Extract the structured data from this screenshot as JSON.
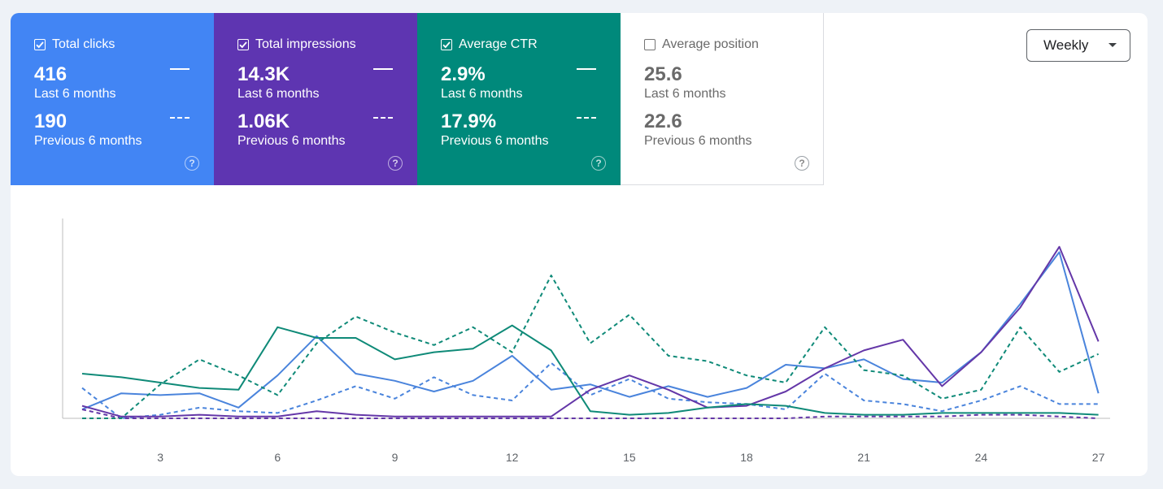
{
  "metrics": [
    {
      "label": "Total clicks",
      "checked": true,
      "value": "416",
      "period": "Last 6 months",
      "prev_value": "190",
      "prev_period": "Previous 6 months",
      "color": "#4285f4",
      "help": "?"
    },
    {
      "label": "Total impressions",
      "checked": true,
      "value": "14.3K",
      "period": "Last 6 months",
      "prev_value": "1.06K",
      "prev_period": "Previous 6 months",
      "color": "#5e35b1",
      "help": "?"
    },
    {
      "label": "Average CTR",
      "checked": true,
      "value": "2.9%",
      "period": "Last 6 months",
      "prev_value": "17.9%",
      "prev_period": "Previous 6 months",
      "color": "#00897b",
      "help": "?"
    },
    {
      "label": "Average position",
      "checked": false,
      "value": "25.6",
      "period": "Last 6 months",
      "prev_value": "22.6",
      "prev_period": "Previous 6 months",
      "color": "#ffffff",
      "help": "?"
    }
  ],
  "granularity": {
    "selected": "Weekly"
  },
  "chart_data": {
    "type": "line",
    "x": [
      1,
      2,
      3,
      4,
      5,
      6,
      7,
      8,
      9,
      10,
      11,
      12,
      13,
      14,
      15,
      16,
      17,
      18,
      19,
      20,
      21,
      22,
      23,
      24,
      25,
      26,
      27
    ],
    "xticks": [
      3,
      6,
      9,
      12,
      15,
      18,
      21,
      24,
      27
    ],
    "xlim": [
      0.5,
      27.3
    ],
    "ylim": [
      0,
      100
    ],
    "grid": false,
    "series": [
      {
        "metric": "clicks",
        "period": "current",
        "style": "solid",
        "color": "#4a84dc",
        "values": [
          5,
          14,
          13,
          14,
          6,
          24,
          46,
          25,
          21,
          15,
          21,
          35,
          16,
          19,
          12,
          18,
          12,
          17,
          30,
          28,
          33,
          22,
          20,
          37,
          64,
          93,
          14
        ]
      },
      {
        "metric": "clicks",
        "period": "previous",
        "style": "dashed",
        "color": "#4a84dc",
        "values": [
          17,
          0,
          2,
          6,
          4,
          3,
          10,
          18,
          11,
          23,
          13,
          10,
          31,
          13,
          22,
          11,
          9,
          8,
          5,
          25,
          10,
          8,
          4,
          10,
          18,
          8,
          8
        ]
      },
      {
        "metric": "impressions",
        "period": "current",
        "style": "solid",
        "color": "#6437a8",
        "values": [
          7,
          1,
          1,
          2,
          1,
          1,
          4,
          2,
          1,
          1,
          1,
          1,
          1,
          16,
          24,
          16,
          6,
          7,
          15,
          28,
          38,
          44,
          18,
          37,
          62,
          96,
          43
        ]
      },
      {
        "metric": "impressions",
        "period": "previous",
        "style": "dashed",
        "color": "#6437a8",
        "values": [
          5,
          0,
          0,
          0,
          0,
          0,
          0,
          0,
          0,
          0,
          0,
          0,
          0,
          0,
          0,
          0,
          0,
          0,
          0,
          1,
          1,
          1,
          1,
          2,
          2,
          1,
          0
        ]
      },
      {
        "metric": "ctr",
        "period": "current",
        "style": "solid",
        "color": "#0f8a78",
        "values": [
          25,
          23,
          20,
          17,
          16,
          51,
          45,
          45,
          33,
          37,
          39,
          52,
          38,
          4,
          2,
          3,
          6,
          8,
          7,
          3,
          2,
          2,
          3,
          3,
          3,
          3,
          2
        ]
      },
      {
        "metric": "ctr",
        "period": "previous",
        "style": "dashed",
        "color": "#0f8a78",
        "values": [
          0,
          0,
          19,
          33,
          24,
          13,
          42,
          57,
          48,
          41,
          51,
          37,
          80,
          42,
          58,
          35,
          32,
          24,
          20,
          51,
          27,
          24,
          11,
          16,
          51,
          26,
          36
        ]
      }
    ]
  }
}
